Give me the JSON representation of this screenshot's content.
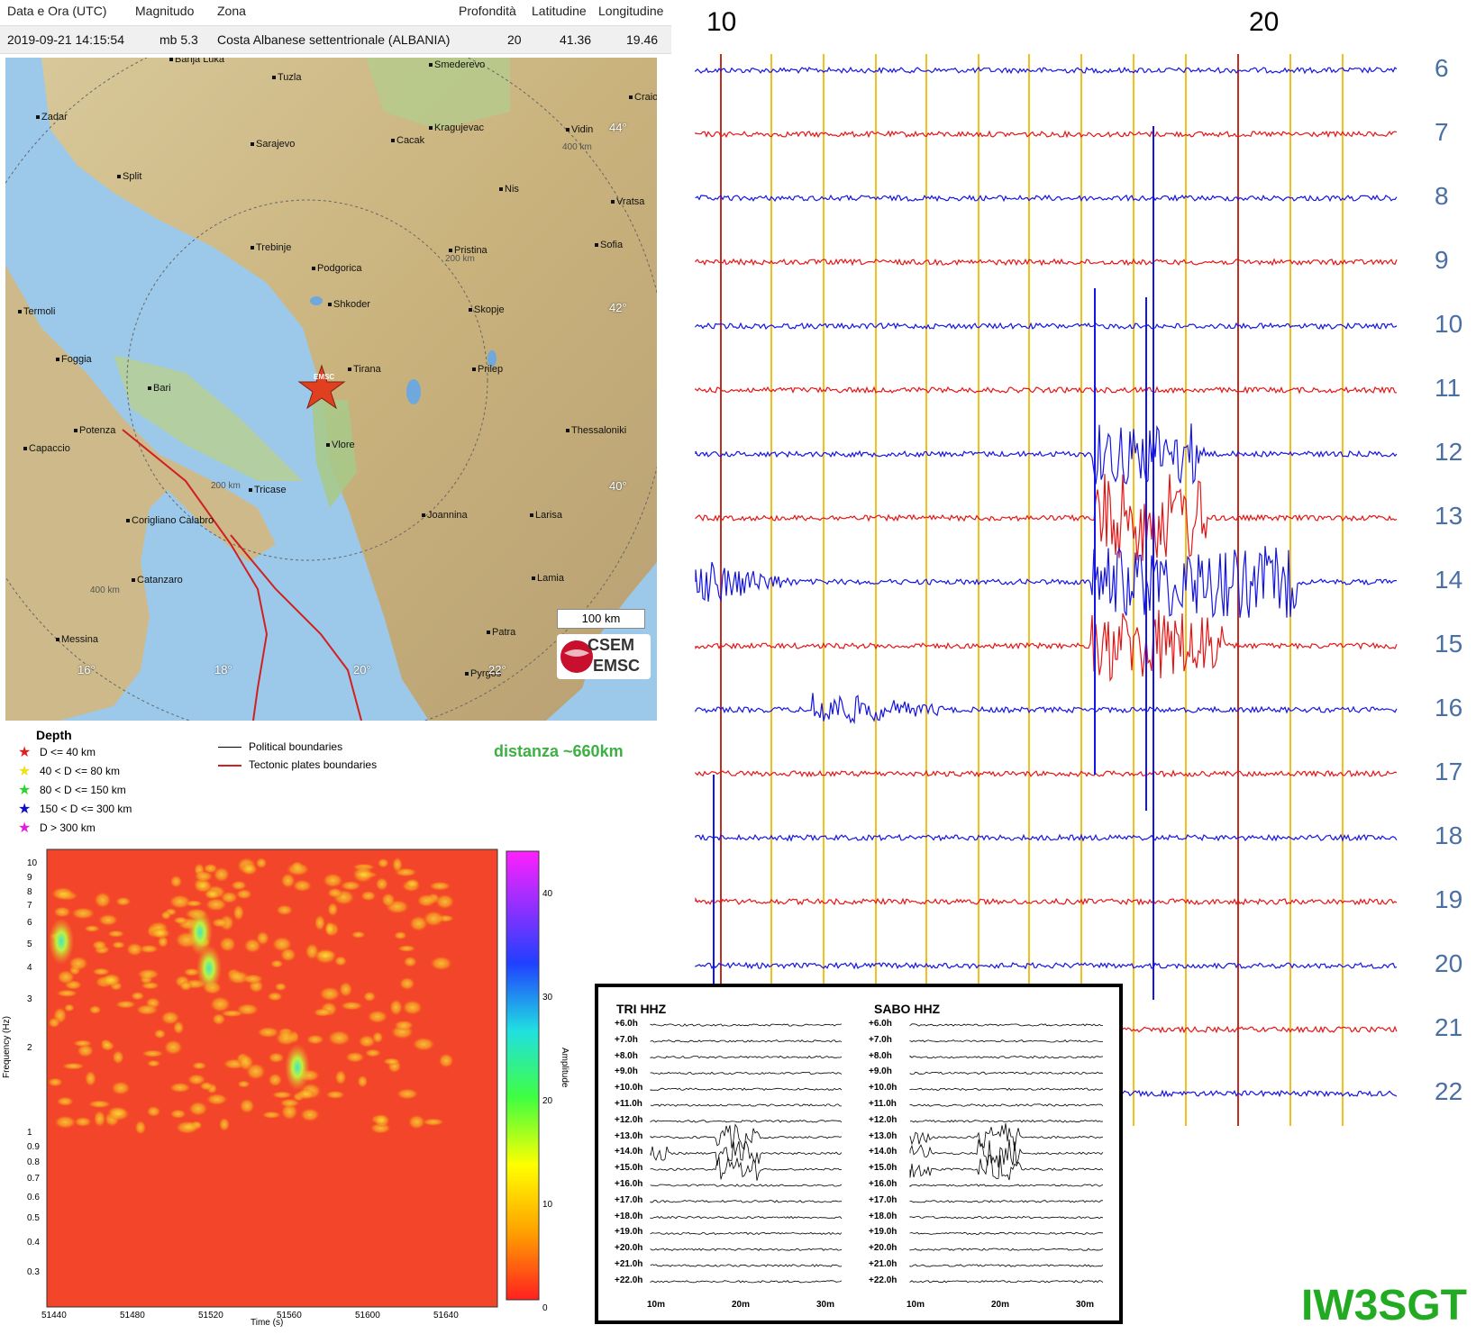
{
  "event_table": {
    "headers": [
      "Data e Ora (UTC)",
      "Magnitudo",
      "Zona",
      "Profondità",
      "Latitudine",
      "Longitudine"
    ],
    "row": {
      "datetime": "2019-09-21 14:15:54",
      "magnitude": "mb 5.3",
      "zone": "Costa Albanese settentrionale (ALBANIA)",
      "depth": "20",
      "latitude": "41.36",
      "longitude": "19.46"
    }
  },
  "map": {
    "cities": [
      "Banja Luka",
      "Tuzla",
      "Smederevo",
      "Craio",
      "Zadar",
      "Kragujevac",
      "Vidin",
      "Sarajevo",
      "Cacak",
      "Split",
      "Nis",
      "Vratsa",
      "Trebinje",
      "Pristina",
      "Sofia",
      "Podgorica",
      "Shkoder",
      "Termoli",
      "Skopje",
      "Foggia",
      "Tirana",
      "Prilep",
      "Bari",
      "Potenza",
      "Thessaloniki",
      "Capaccio",
      "Vlore",
      "Tricase",
      "Joannina",
      "Larisa",
      "Corigliano Calabro",
      "Catanzaro",
      "Lamia",
      "Messina",
      "Patra",
      "Pyrgos"
    ],
    "lat_labels": [
      "44°",
      "42°",
      "40°"
    ],
    "lon_labels": [
      "16°",
      "18°",
      "20°",
      "22°"
    ],
    "ring_labels": [
      "400 km",
      "200 km",
      "200 km",
      "400 km"
    ],
    "epicenter_label": "EMSC",
    "scale_label": "100 km",
    "logo_text": [
      "CSEM",
      "EMSC"
    ]
  },
  "legend": {
    "depth_title": "Depth",
    "depth_items": [
      {
        "label": "D <= 40 km",
        "color": "#e02020"
      },
      {
        "label": "40 < D <= 80 km",
        "color": "#f0e020"
      },
      {
        "label": "80 < D <= 150 km",
        "color": "#30d030"
      },
      {
        "label": "150 < D <= 300 km",
        "color": "#1010c0"
      },
      {
        "label": "D > 300 km",
        "color": "#e020e0"
      }
    ],
    "line_items": [
      {
        "label": "Political boundaries",
        "color": "#000000"
      },
      {
        "label": "Tectonic plates boundaries",
        "color": "#d02020"
      }
    ],
    "distance": "distanza ~660km"
  },
  "helicorder": {
    "top_ticks": [
      "10",
      "20"
    ],
    "hours": [
      "6",
      "7",
      "8",
      "9",
      "10",
      "11",
      "12",
      "13",
      "14",
      "15",
      "16",
      "17",
      "18",
      "19",
      "20",
      "21",
      "22"
    ],
    "colors": {
      "blue": "#1515e6",
      "red": "#e61515",
      "grid": "#f0c020"
    }
  },
  "spectrogram": {
    "ylabel": "Frequency (Hz)",
    "xlabel": "Time (s)",
    "yticks": [
      "10",
      "9",
      "8",
      "7",
      "6",
      "5",
      "4",
      "3",
      "2",
      "1",
      "0.9",
      "0.8",
      "0.7",
      "0.6",
      "0.5",
      "0.4",
      "0.3"
    ],
    "xticks": [
      "51440",
      "51480",
      "51520",
      "51560",
      "51600",
      "51640"
    ],
    "colorbar_label": "Amplitude",
    "colorbar_ticks": [
      "40",
      "30",
      "20",
      "10",
      "0"
    ]
  },
  "inset": {
    "left_title": "TRI HHZ",
    "right_title": "SABO HHZ",
    "row_labels": [
      "+6.0h",
      "+7.0h",
      "+8.0h",
      "+9.0h",
      "+10.0h",
      "+11.0h",
      "+12.0h",
      "+13.0h",
      "+14.0h",
      "+15.0h",
      "+16.0h",
      "+17.0h",
      "+18.0h",
      "+19.0h",
      "+20.0h",
      "+21.0h",
      "+22.0h"
    ],
    "x_labels": [
      "10m",
      "20m",
      "30m"
    ]
  },
  "callsign": "IW3SGT"
}
